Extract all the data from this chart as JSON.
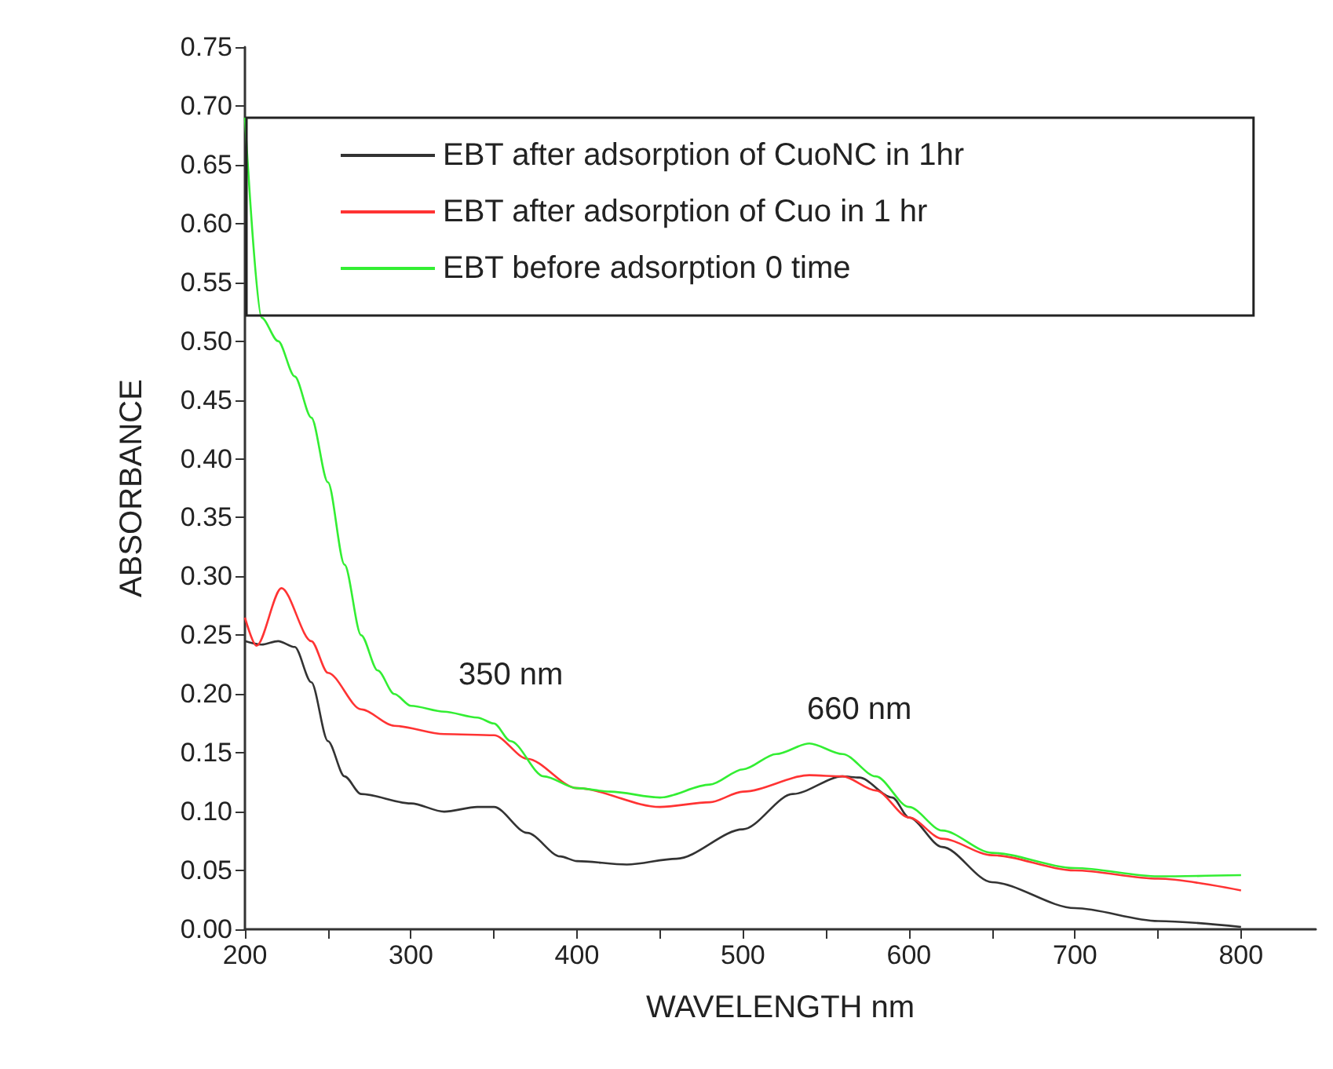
{
  "chart_data": {
    "type": "line",
    "xlabel": "WAVELENGTH nm",
    "ylabel": "ABSORBANCE",
    "xlim": [
      200,
      845
    ],
    "xticks": [
      200,
      {
        "value": 250,
        "label": null
      },
      300,
      {
        "value": 350,
        "label": null
      },
      400,
      {
        "value": 450,
        "label": null
      },
      500,
      {
        "value": 550,
        "label": null
      },
      600,
      {
        "value": 650,
        "label": null
      },
      700,
      {
        "value": 750,
        "label": null
      },
      800
    ],
    "ylim": [
      0,
      0.75
    ],
    "yticks": [
      {
        "value": 0,
        "label": "0.00"
      },
      {
        "value": 0.05,
        "label": "0.05"
      },
      {
        "value": 0.1,
        "label": "0.10"
      },
      {
        "value": 0.15,
        "label": "0.15"
      },
      {
        "value": 0.2,
        "label": "0.20"
      },
      {
        "value": 0.25,
        "label": "0.25"
      },
      {
        "value": 0.3,
        "label": "0.30"
      },
      {
        "value": 0.35,
        "label": "0.35"
      },
      {
        "value": 0.4,
        "label": "0.40"
      },
      {
        "value": 0.45,
        "label": "0.45"
      },
      {
        "value": 0.5,
        "label": "0.50"
      },
      {
        "value": 0.55,
        "label": "0.55"
      },
      {
        "value": 0.6,
        "label": "0.60"
      },
      {
        "value": 0.65,
        "label": "0.65"
      },
      {
        "value": 0.7,
        "label": "0.70"
      },
      {
        "value": 0.75,
        "label": "0.75"
      }
    ],
    "grid": false,
    "legend": "top",
    "marker": "none",
    "line_style": "solid",
    "annotations": [
      "350 nm",
      "660 nm"
    ],
    "series": [
      {
        "name": "EBT after adsorption of CuoNC in 1hr",
        "color": "#333333",
        "x": [
          200,
          210,
          220,
          230,
          240,
          250,
          260,
          270,
          300,
          320,
          340,
          350,
          370,
          390,
          400,
          430,
          460,
          500,
          530,
          560,
          570,
          590,
          600,
          620,
          650,
          700,
          750,
          800
        ],
        "values": [
          0.245,
          0.242,
          0.245,
          0.24,
          0.21,
          0.16,
          0.13,
          0.115,
          0.107,
          0.1,
          0.104,
          0.104,
          0.082,
          0.062,
          0.058,
          0.055,
          0.06,
          0.085,
          0.115,
          0.13,
          0.129,
          0.112,
          0.095,
          0.07,
          0.04,
          0.018,
          0.007,
          0.002
        ]
      },
      {
        "name": "EBT after adsorption of Cuo in 1 hr",
        "color": "#ff3333",
        "x": [
          200,
          207,
          222,
          240,
          250,
          270,
          290,
          320,
          350,
          370,
          400,
          450,
          480,
          500,
          540,
          560,
          580,
          600,
          620,
          650,
          700,
          750,
          800
        ],
        "values": [
          0.265,
          0.241,
          0.29,
          0.245,
          0.218,
          0.187,
          0.173,
          0.166,
          0.165,
          0.145,
          0.12,
          0.104,
          0.108,
          0.117,
          0.131,
          0.13,
          0.118,
          0.095,
          0.077,
          0.063,
          0.05,
          0.043,
          0.033
        ]
      },
      {
        "name": "EBT before adsorption 0 time",
        "color": "#33ee33",
        "x": [
          200,
          210,
          220,
          230,
          240,
          250,
          260,
          270,
          280,
          290,
          300,
          320,
          340,
          350,
          360,
          380,
          400,
          420,
          450,
          480,
          500,
          520,
          540,
          560,
          580,
          600,
          620,
          650,
          700,
          750,
          800
        ],
        "values": [
          0.69,
          0.52,
          0.5,
          0.47,
          0.435,
          0.38,
          0.31,
          0.25,
          0.22,
          0.2,
          0.19,
          0.185,
          0.18,
          0.175,
          0.16,
          0.13,
          0.12,
          0.117,
          0.112,
          0.123,
          0.136,
          0.149,
          0.158,
          0.149,
          0.13,
          0.104,
          0.084,
          0.065,
          0.052,
          0.045,
          0.046
        ]
      }
    ]
  }
}
